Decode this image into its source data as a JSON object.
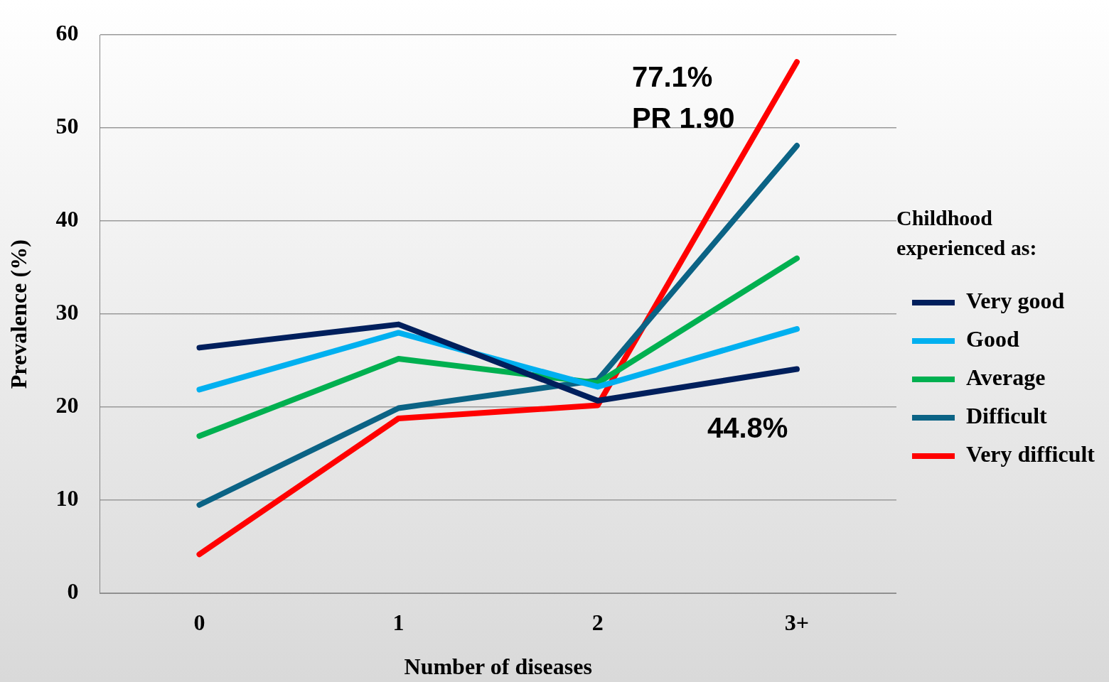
{
  "chart_data": {
    "type": "line",
    "xlabel": "Number of diseases",
    "ylabel": "Prevalence (%)",
    "legend_title": "Childhood experienced as:",
    "legend": "right",
    "grid": "y",
    "marker": "none",
    "line_style": "solid",
    "categories": [
      "0",
      "1",
      "2",
      "3+"
    ],
    "ylim": [
      0,
      60
    ],
    "yticks": [
      0,
      10,
      20,
      30,
      40,
      50,
      60
    ],
    "series": [
      {
        "name": "Very good",
        "color": "#001f5c",
        "values": [
          26.4,
          28.9,
          20.7,
          24.1
        ]
      },
      {
        "name": "Good",
        "color": "#00b0f0",
        "values": [
          21.9,
          28.0,
          22.2,
          28.4
        ]
      },
      {
        "name": "Average",
        "color": "#00b050",
        "values": [
          16.9,
          25.2,
          22.6,
          36.0
        ]
      },
      {
        "name": "Difficult",
        "color": "#0b6385",
        "values": [
          9.5,
          19.9,
          22.9,
          48.1
        ]
      },
      {
        "name": "Very difficult",
        "color": "#ff0000",
        "values": [
          4.2,
          18.8,
          20.2,
          57.1
        ]
      }
    ],
    "annotations": [
      "77.1%",
      "PR 1.90",
      "44.8%"
    ]
  }
}
